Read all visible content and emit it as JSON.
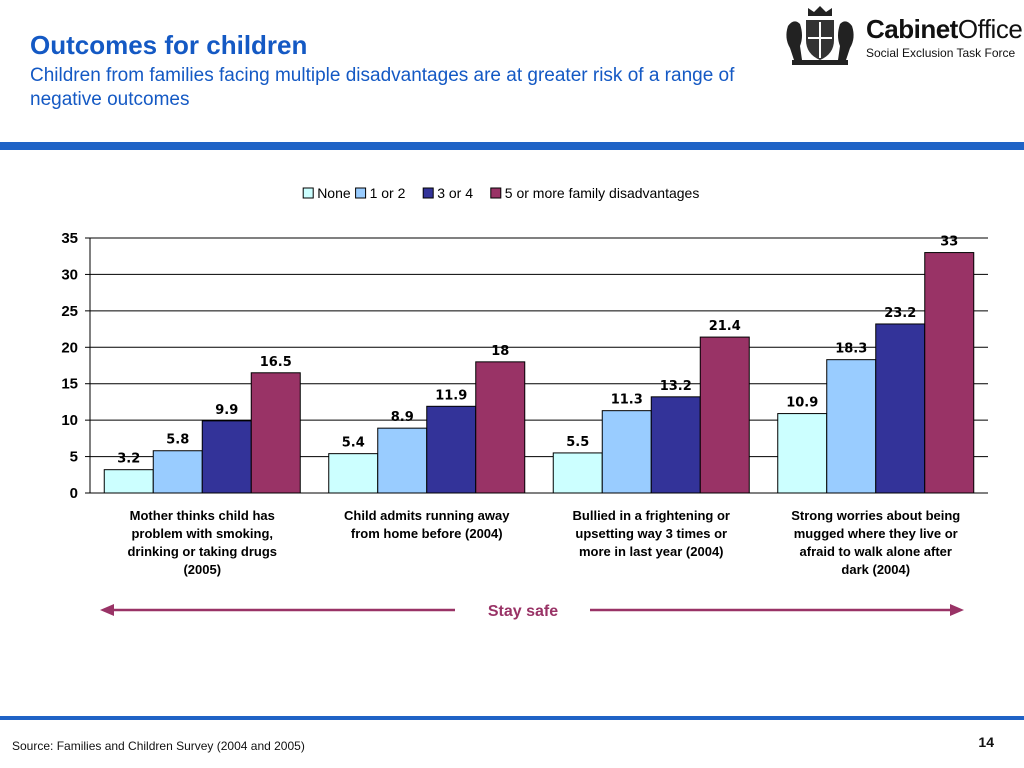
{
  "slide": {
    "title": "Outcomes for children",
    "subtitle": "Children from families facing multiple disadvantages are at greater risk of a range of negative outcomes",
    "source": "Source: Families and Children Survey (2004 and 2005)",
    "page_number": "14",
    "logo": {
      "name_bold": "Cabinet",
      "name_light": "Office",
      "tagline": "Social Exclusion Task Force"
    }
  },
  "chart_data": {
    "type": "bar",
    "categories": [
      "Mother thinks child has problem with smoking, drinking or taking drugs (2005)",
      "Child admits running away from home before (2004)",
      "Bullied in a frightening or upsetting way 3 times or more in last year (2004)",
      "Strong worries about being mugged where they live or afraid to walk alone after dark (2004)"
    ],
    "series": [
      {
        "name": "None",
        "color": "#ccffff",
        "values": [
          3.2,
          5.4,
          5.5,
          10.9
        ],
        "labels": [
          "3.2",
          "5.4",
          "5.5",
          "10.9"
        ]
      },
      {
        "name": "1 or 2",
        "color": "#99ccff",
        "values": [
          5.8,
          8.9,
          11.3,
          18.3
        ],
        "labels": [
          "5.8",
          "8.9",
          "11.3",
          "18.3"
        ]
      },
      {
        "name": "3 or 4",
        "color": "#333399",
        "values": [
          9.9,
          11.9,
          13.2,
          23.2
        ],
        "labels": [
          "9.9",
          "11.9",
          "13.2",
          "23.2"
        ]
      },
      {
        "name": "5 or more family disadvantages",
        "color": "#993366",
        "values": [
          16.5,
          18,
          21.4,
          33
        ],
        "labels": [
          "16.5",
          "18",
          "21.4",
          "33"
        ]
      }
    ],
    "ylim": [
      0,
      35
    ],
    "yticks": [
      "0",
      "5",
      "10",
      "15",
      "20",
      "25",
      "30",
      "35"
    ],
    "grid": true,
    "legend_position": "top",
    "annotation": "Stay safe",
    "annotation_color": "#993366"
  }
}
